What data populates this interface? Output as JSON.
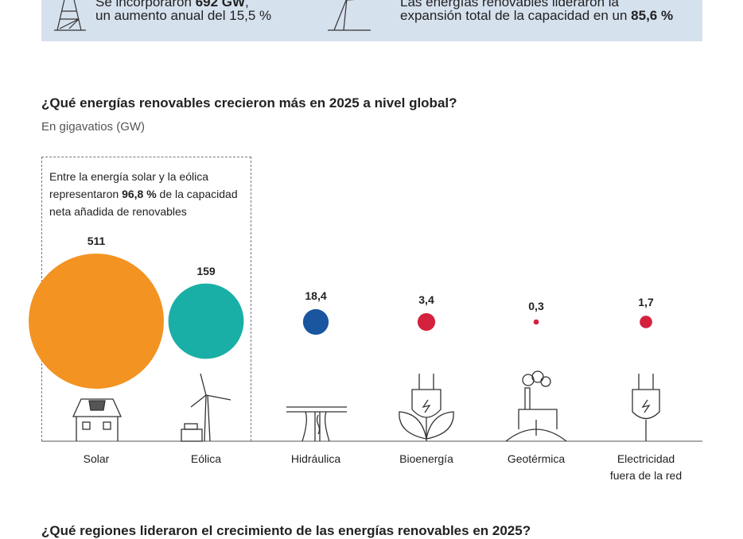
{
  "banner": {
    "left_line1_prefix": "Se incorporaron ",
    "left_line1_bold": "692 GW",
    "left_line1_suffix": ",",
    "left_line2": "un aumento anual del 15,5 %",
    "right_line1": "Las energías renovables lideraron la",
    "right_line2_prefix": "expansión total de la capacidad en un ",
    "right_line2_bold": "85,6 %"
  },
  "chart_data": {
    "type": "bubble",
    "title": "¿Qué energías renovables crecieron más en 2025 a nivel global?",
    "subtitle": "En gigavatios (GW)",
    "categories": [
      "Solar",
      "Eólica",
      "Hidráulica",
      "Bioenergía",
      "Geotérmica",
      "Electricidad fuera de la red"
    ],
    "values": [
      511,
      159,
      18.4,
      3.4,
      0.3,
      1.7
    ],
    "value_labels": [
      "511",
      "159",
      "18,4",
      "3,4",
      "0,3",
      "1,7"
    ],
    "colors": [
      "#f39322",
      "#1aafa6",
      "#1a56a0",
      "#d4213d",
      "#d4213d",
      "#d4213d"
    ],
    "annotation": {
      "prefix": "Entre la energía solar y la eólica representaron ",
      "bold": "96,8 %",
      "suffix": " de la capacidad neta añadida de renovables"
    }
  },
  "labels": {
    "electricidad_line1": "Electricidad",
    "electricidad_line2": "fuera de la red"
  },
  "next_section_title": "¿Qué regiones lideraron el crecimiento de las energías renovables en 2025?"
}
